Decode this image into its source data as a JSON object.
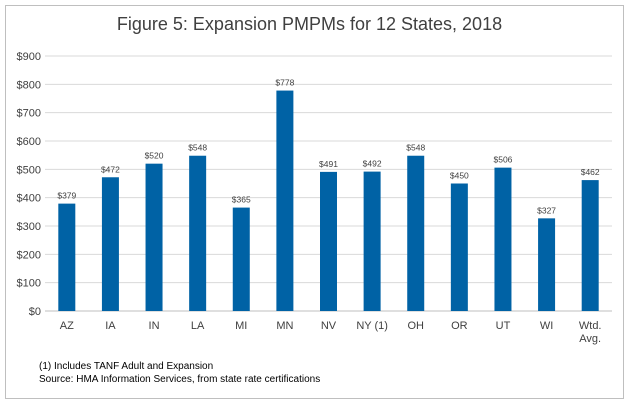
{
  "chart_data": {
    "type": "bar",
    "title": "Figure 5: Expansion PMPMs for 12 States, 2018",
    "categories": [
      "AZ",
      "IA",
      "IN",
      "LA",
      "MI",
      "MN",
      "NV",
      "NY (1)",
      "OH",
      "OR",
      "UT",
      "WI",
      "Wtd. Avg."
    ],
    "values": [
      379,
      472,
      520,
      548,
      365,
      778,
      491,
      492,
      548,
      450,
      506,
      327,
      462
    ],
    "data_labels": [
      "$379",
      "$472",
      "$520",
      "$548",
      "$365",
      "$778",
      "$491",
      "$492",
      "$548",
      "$450",
      "$506",
      "$327",
      "$462"
    ],
    "y_ticks": [
      "$0",
      "$100",
      "$200",
      "$300",
      "$400",
      "$500",
      "$600",
      "$700",
      "$800",
      "$900"
    ],
    "ylim": [
      0,
      900
    ],
    "grid": true,
    "legend": "none",
    "bar_color": "#0062a5"
  },
  "footnotes": {
    "note1": "(1) Includes TANF Adult and Expansion",
    "source": "Source: HMA Information Services, from state rate certifications"
  }
}
